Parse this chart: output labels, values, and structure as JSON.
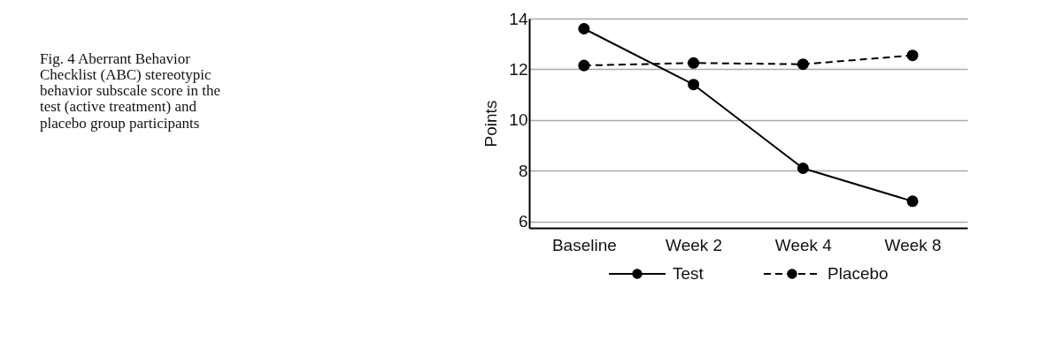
{
  "chart_data": {
    "type": "line",
    "title": "Fig. 4 Aberrant Behavior Checklist (ABC) stereotypic behavior subscale score in the test (active treatment) and placebo group participants",
    "ylabel": "Points",
    "categories": [
      "Baseline",
      "Week 2",
      "Week 4",
      "Week 8"
    ],
    "series": [
      {
        "name": "Test",
        "color": "#000000",
        "line_style": "solid",
        "values": [
          13.6,
          11.4,
          8.1,
          6.8
        ]
      },
      {
        "name": "Placebo",
        "color": "#000000",
        "line_style": "dashed",
        "values": [
          12.15,
          12.25,
          12.2,
          12.55
        ]
      }
    ],
    "ylim": [
      5.75,
      14
    ],
    "yticks": [
      6,
      8,
      10,
      12,
      14
    ],
    "grid": "y",
    "legend": "bottom",
    "marker": "circle"
  }
}
